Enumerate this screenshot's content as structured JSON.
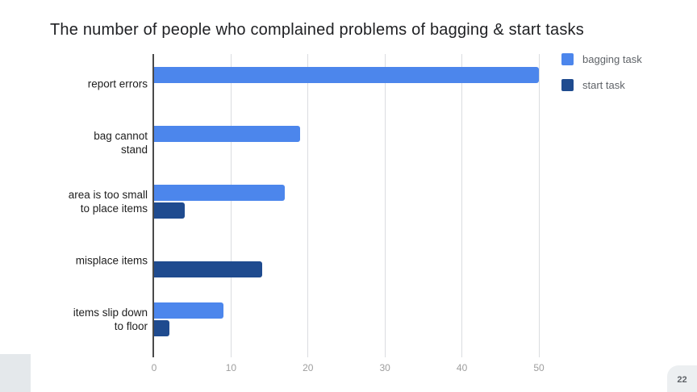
{
  "slide": {
    "page_badge": "22"
  },
  "chart_data": {
    "type": "bar",
    "orientation": "horizontal",
    "title": "The number of people who complained problems of bagging & start tasks",
    "categories": [
      "report errors",
      "bag cannot stand",
      "area is too small to place items",
      "misplace items",
      "items slip down to floor"
    ],
    "category_labels": [
      "report errors",
      "bag cannot\nstand",
      "area is too small\nto place items",
      "misplace items",
      "items slip down\nto floor"
    ],
    "series": [
      {
        "name": "bagging task",
        "color": "#4C86EC",
        "values": [
          50,
          19,
          17,
          0,
          9
        ]
      },
      {
        "name": "start task",
        "color": "#1F4B8F",
        "values": [
          0,
          0,
          4,
          14,
          2
        ]
      }
    ],
    "xlim": [
      0,
      50
    ],
    "xticks": [
      0,
      10,
      20,
      30,
      40,
      50
    ],
    "xlabel": "",
    "ylabel": "",
    "grid": true,
    "legend_position": "top-right",
    "colors": {
      "gridline": "#DADCE0",
      "axis": "#4A4A4A",
      "tick_label": "#9E9E9E",
      "category_label": "#1E1E1E",
      "legend_label": "#5F6368"
    }
  }
}
